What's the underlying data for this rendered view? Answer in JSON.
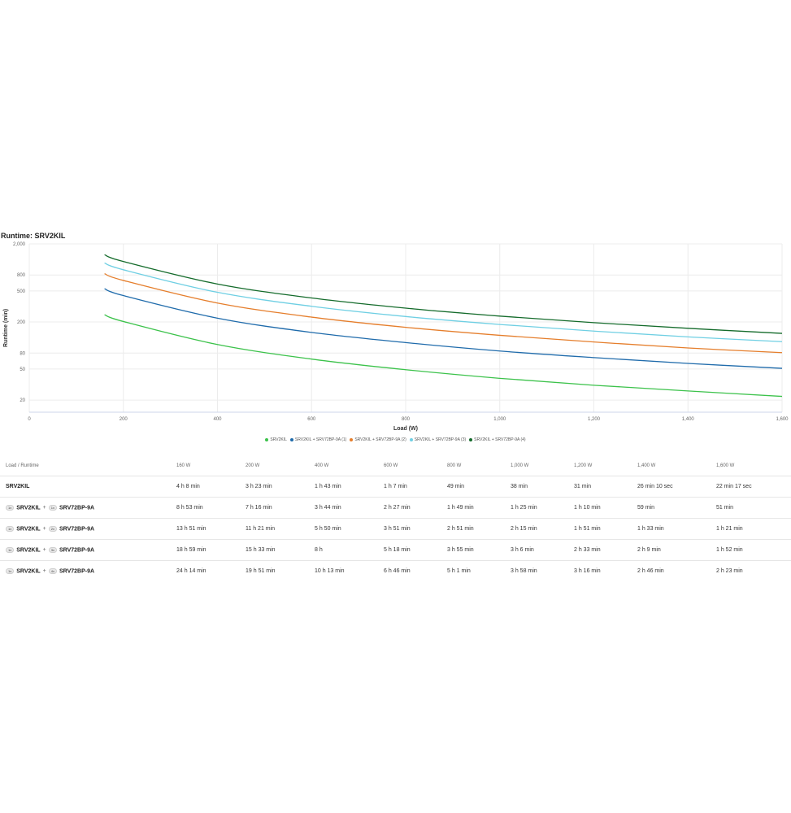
{
  "chart_data": {
    "type": "line",
    "title": "Runtime: SRV2KIL",
    "xlabel": "Load (W)",
    "ylabel": "Runtime (min)",
    "xlim": [
      0,
      1600
    ],
    "ylim": [
      14,
      2000
    ],
    "yscale": "log",
    "grid": true,
    "legend_position": "bottom",
    "x_ticks": [
      0,
      200,
      400,
      600,
      800,
      1000,
      1200,
      1400,
      1600
    ],
    "x_tick_labels": [
      "0",
      "200",
      "400",
      "600",
      "800",
      "1,000",
      "1,200",
      "1,400",
      "1,600"
    ],
    "y_ticks": [
      20,
      50,
      80,
      200,
      500,
      800,
      2000
    ],
    "y_tick_labels": [
      "20",
      "50",
      "80",
      "200",
      "500",
      "800",
      "2,000"
    ],
    "x": [
      160,
      200,
      400,
      600,
      800,
      1000,
      1200,
      1400,
      1600
    ],
    "series": [
      {
        "name": "SRV2KIL",
        "color": "#3cc24b",
        "values": [
          248,
          203,
          103,
          67,
          49,
          38,
          31,
          26.2,
          22.3
        ]
      },
      {
        "name": "SRV2KIL + SRV72BP-9A (1)",
        "color": "#1f6bab",
        "values": [
          533,
          436,
          224,
          147,
          109,
          85,
          70,
          59,
          51
        ]
      },
      {
        "name": "SRV2KIL + SRV72BP-9A (2)",
        "color": "#e57e2c",
        "values": [
          831,
          681,
          350,
          231,
          171,
          135,
          111,
          93,
          81
        ]
      },
      {
        "name": "SRV2KIL + SRV72BP-9A (3)",
        "color": "#6fcfe3",
        "values": [
          1139,
          933,
          480,
          318,
          235,
          186,
          153,
          129,
          112
        ]
      },
      {
        "name": "SRV2KIL + SRV72BP-9A (4)",
        "color": "#146b2b",
        "values": [
          1454,
          1191,
          613,
          406,
          301,
          238,
          196,
          166,
          143
        ]
      }
    ]
  },
  "table": {
    "header_label": "Load / Runtime",
    "columns": [
      "160 W",
      "200 W",
      "400 W",
      "600 W",
      "800 W",
      "1,000 W",
      "1,200 W",
      "1,400 W",
      "1,600 W"
    ],
    "rows": [
      {
        "ups": "SRV2KIL",
        "cells": [
          "4 h 8 min",
          "3 h 23 min",
          "1 h 43 min",
          "1 h 7 min",
          "49 min",
          "38 min",
          "31 min",
          "26 min 10 sec",
          "22 min 17 sec"
        ]
      },
      {
        "ups_qty": "1x",
        "ups": "SRV2KIL",
        "plus": "+",
        "battery_qty": "1x",
        "battery": "SRV72BP-9A",
        "cells": [
          "8 h 53 min",
          "7 h 16 min",
          "3 h 44 min",
          "2 h 27 min",
          "1 h 49 min",
          "1 h 25 min",
          "1 h 10 min",
          "59 min",
          "51 min"
        ]
      },
      {
        "ups_qty": "1x",
        "ups": "SRV2KIL",
        "plus": "+",
        "battery_qty": "2x",
        "battery": "SRV72BP-9A",
        "cells": [
          "13 h 51 min",
          "11 h 21 min",
          "5 h 50 min",
          "3 h 51 min",
          "2 h 51 min",
          "2 h 15 min",
          "1 h 51 min",
          "1 h 33 min",
          "1 h 21 min"
        ]
      },
      {
        "ups_qty": "1x",
        "ups": "SRV2KIL",
        "plus": "+",
        "battery_qty": "3x",
        "battery": "SRV72BP-9A",
        "cells": [
          "18 h 59 min",
          "15 h 33 min",
          "8 h",
          "5 h 18 min",
          "3 h 55 min",
          "3 h 6 min",
          "2 h 33 min",
          "2 h 9 min",
          "1 h 52 min"
        ]
      },
      {
        "ups_qty": "1x",
        "ups": "SRV2KIL",
        "plus": "+",
        "battery_qty": "4x",
        "battery": "SRV72BP-9A",
        "cells": [
          "24 h 14 min",
          "19 h 51 min",
          "10 h 13 min",
          "6 h 46 min",
          "5 h 1 min",
          "3 h 58 min",
          "3 h 16 min",
          "2 h 46 min",
          "2 h 23 min"
        ]
      }
    ]
  }
}
